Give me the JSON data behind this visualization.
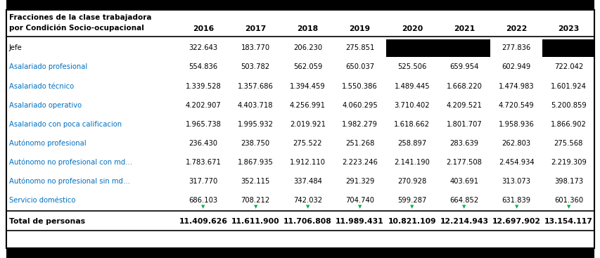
{
  "header_lines": [
    "Fracciones de la clase trabajadora",
    "por Condición Socio-ocupacional"
  ],
  "years": [
    "2016",
    "2017",
    "2018",
    "2019",
    "2020",
    "2021",
    "2022",
    "2023"
  ],
  "rows": [
    {
      "label": "Jefe",
      "values": [
        "322.643",
        "183.770",
        "206.230",
        "275.851",
        "",
        "",
        "277.836",
        ""
      ],
      "label_color": "#000000",
      "black_cells": [
        4,
        5,
        7
      ]
    },
    {
      "label": "Asalariado profesional",
      "values": [
        "554.836",
        "503.782",
        "562.059",
        "650.037",
        "525.506",
        "659.954",
        "602.949",
        "722.042"
      ],
      "label_color": "#0070C0",
      "black_cells": []
    },
    {
      "label": "Asalariado técnico",
      "values": [
        "1.339.528",
        "1.357.686",
        "1.394.459",
        "1.550.386",
        "1.489.445",
        "1.668.220",
        "1.474.983",
        "1.601.924"
      ],
      "label_color": "#0070C0",
      "black_cells": []
    },
    {
      "label": "Asalariado operativo",
      "values": [
        "4.202.907",
        "4.403.718",
        "4.256.991",
        "4.060.295",
        "3.710.402",
        "4.209.521",
        "4.720.549",
        "5.200.859"
      ],
      "label_color": "#0070C0",
      "black_cells": []
    },
    {
      "label": "Asalariado con poca calificacion",
      "values": [
        "1.965.738",
        "1.995.932",
        "2.019.921",
        "1.982.279",
        "1.618.662",
        "1.801.707",
        "1.958.936",
        "1.866.902"
      ],
      "label_color": "#0070C0",
      "black_cells": []
    },
    {
      "label": "Autónomo profesional",
      "values": [
        "236.430",
        "238.750",
        "275.522",
        "251.268",
        "258.897",
        "283.639",
        "262.803",
        "275.568"
      ],
      "label_color": "#0070C0",
      "black_cells": []
    },
    {
      "label": "Autónomo no profesional con md…",
      "values": [
        "1.783.671",
        "1.867.935",
        "1.912.110",
        "2.223.246",
        "2.141.190",
        "2.177.508",
        "2.454.934",
        "2.219.309"
      ],
      "label_color": "#0070C0",
      "black_cells": []
    },
    {
      "label": "Autónomo no profesional sin md…",
      "values": [
        "317.770",
        "352.115",
        "337.484",
        "291.329",
        "270.928",
        "403.691",
        "313.073",
        "398.173"
      ],
      "label_color": "#0070C0",
      "black_cells": []
    },
    {
      "label": "Servicio doméstico",
      "values": [
        "686.103",
        "708.212",
        "742.032",
        "704.740",
        "599.287",
        "664.852",
        "631.839",
        "601.360"
      ],
      "label_color": "#0070C0",
      "black_cells": []
    }
  ],
  "total_label": "Total de personas",
  "total_values": [
    "11.409.626",
    "11.611.900",
    "11.706.808",
    "11.989.431",
    "10.821.109",
    "12.214.943",
    "12.697.902",
    "13.154.117"
  ],
  "bg_color": "#FFFFFF",
  "header_bg": "#FFFFFF",
  "total_row_bg": "#FFFFFF",
  "border_color": "#000000",
  "green_tick_color": "#00B050"
}
